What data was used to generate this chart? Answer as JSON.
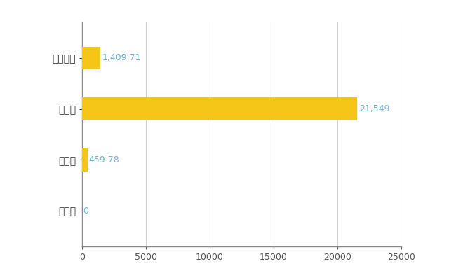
{
  "categories": [
    "陸別町",
    "県平均",
    "県最大",
    "全国平均"
  ],
  "values": [
    0,
    459.78,
    21549,
    1409.71
  ],
  "bar_color": "#F5C518",
  "label_color": "#6EB5D4",
  "label_values": [
    "0",
    "459.78",
    "21,549",
    "1,409.71"
  ],
  "xlim": [
    0,
    25000
  ],
  "xticks": [
    0,
    5000,
    10000,
    15000,
    20000,
    25000
  ],
  "xtick_labels": [
    "0",
    "5000",
    "10000",
    "15000",
    "20000",
    "25000"
  ],
  "background_color": "#ffffff",
  "grid_color": "#d0d0d0",
  "bar_height": 0.45
}
